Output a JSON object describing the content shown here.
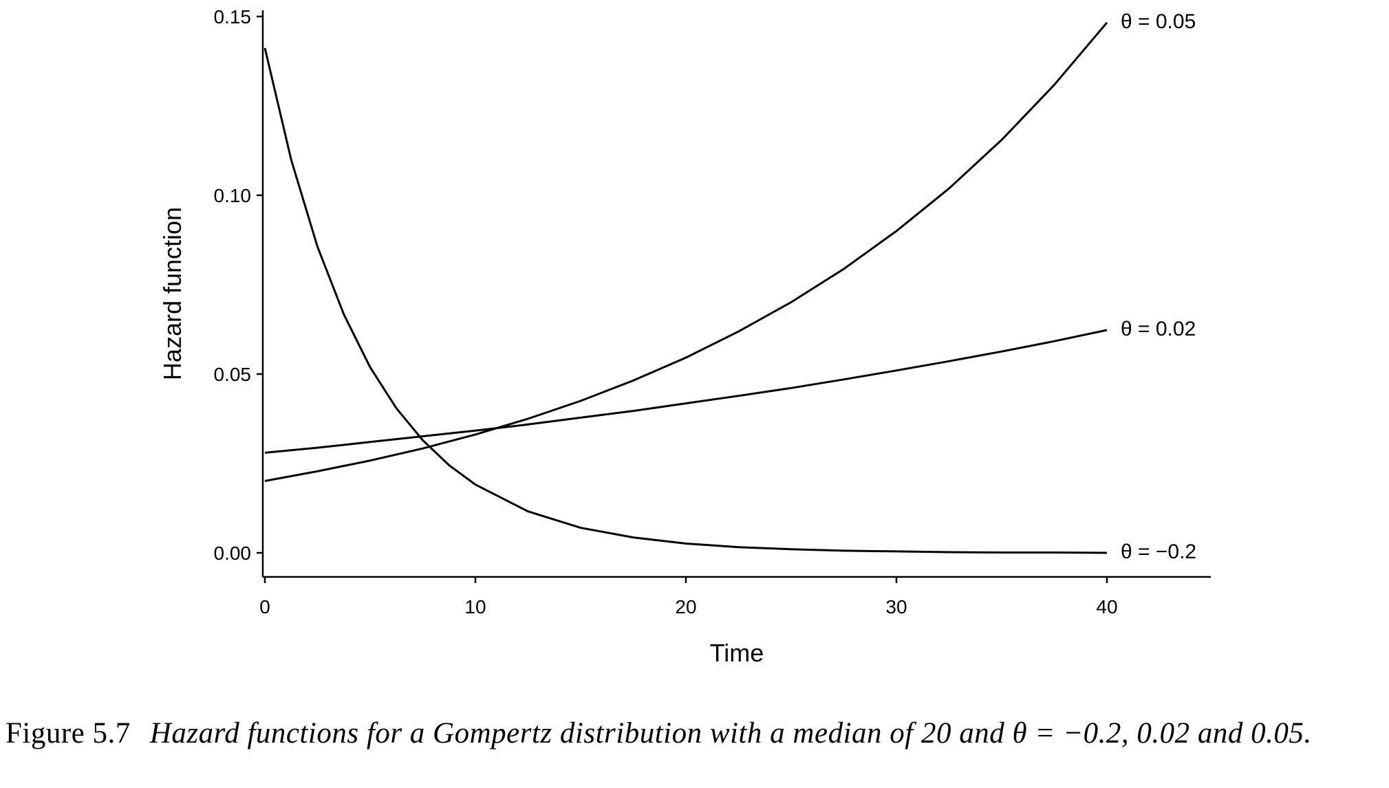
{
  "chart_data": {
    "type": "line",
    "xlabel": "Time",
    "ylabel": "Hazard function",
    "xlim": [
      -1,
      45
    ],
    "ylim": [
      -0.0065,
      0.1505
    ],
    "x_ticks": [
      0,
      10,
      20,
      30,
      40
    ],
    "x_tick_labels": [
      "0",
      "10",
      "20",
      "30",
      "40"
    ],
    "y_ticks": [
      0.0,
      0.05,
      0.1,
      0.15
    ],
    "y_tick_labels": [
      "0.00",
      "0.05",
      "0.10",
      "0.15"
    ],
    "grid": false,
    "legend": "none",
    "series": [
      {
        "name": "θ = 0.05",
        "label_text": "θ = 0.05",
        "x": [
          0,
          2.5,
          5,
          7.5,
          10,
          12.5,
          15,
          17.5,
          20,
          22.5,
          25,
          27.5,
          30,
          32.5,
          35,
          37.5,
          40
        ],
        "y": [
          0.0201,
          0.0228,
          0.0258,
          0.0292,
          0.0331,
          0.0375,
          0.0425,
          0.0482,
          0.0546,
          0.0619,
          0.0701,
          0.0794,
          0.09,
          0.1019,
          0.1155,
          0.1309,
          0.1483
        ]
      },
      {
        "name": "θ = 0.02",
        "label_text": "θ = 0.02",
        "x": [
          0,
          2.5,
          5,
          7.5,
          10,
          12.5,
          15,
          17.5,
          20,
          22.5,
          25,
          27.5,
          30,
          32.5,
          35,
          37.5,
          40
        ],
        "y": [
          0.028,
          0.0294,
          0.031,
          0.0326,
          0.0342,
          0.0359,
          0.0378,
          0.0397,
          0.0418,
          0.0439,
          0.0461,
          0.0485,
          0.051,
          0.0536,
          0.0563,
          0.0592,
          0.0623
        ]
      },
      {
        "name": "θ = −0.2",
        "label_text": "θ = −0.2",
        "x": [
          0,
          1.25,
          2.5,
          3.75,
          5,
          6.25,
          7.5,
          8.75,
          10,
          12.5,
          15,
          17.5,
          20,
          22.5,
          25,
          27.5,
          30,
          32.5,
          35,
          37.5,
          40
        ],
        "y": [
          0.1412,
          0.1099,
          0.0856,
          0.0667,
          0.0519,
          0.0404,
          0.0315,
          0.0245,
          0.0191,
          0.0116,
          0.007,
          0.0043,
          0.0026,
          0.0016,
          0.001,
          0.0006,
          0.0004,
          0.0002,
          0.0001,
          0.0001,
          0.0
        ]
      }
    ]
  },
  "caption": {
    "label": "Figure 5.7",
    "text": "Hazard functions for a Gompertz distribution with a median of 20 and θ = −0.2, 0.02 and 0.05."
  }
}
